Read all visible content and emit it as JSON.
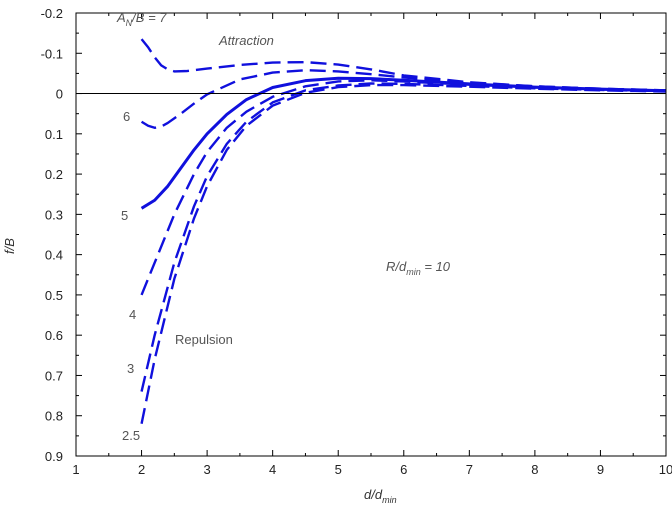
{
  "chart_data": {
    "type": "line",
    "xlabel": "d/d",
    "xlabel_sub": "min",
    "ylabel": "f/B",
    "xlim": [
      1,
      10
    ],
    "ylim": [
      -0.2,
      0.9
    ],
    "y_inverted": true,
    "x_ticks": [
      1,
      2,
      3,
      4,
      5,
      6,
      7,
      8,
      9,
      10
    ],
    "y_ticks": [
      -0.2,
      -0.1,
      0,
      0.1,
      0.2,
      0.3,
      0.4,
      0.5,
      0.6,
      0.7,
      0.8,
      0.9
    ],
    "x_tick_labels": [
      "1",
      "2",
      "3",
      "4",
      "5",
      "6",
      "7",
      "8",
      "9",
      "10"
    ],
    "y_tick_labels": [
      "-0.2",
      "-0.1",
      "0",
      "0.1",
      "0.2",
      "0.3",
      "0.4",
      "0.5",
      "0.6",
      "0.7",
      "0.8",
      "0.9"
    ],
    "grid": false,
    "zero_line": true,
    "line_color": "#1010dd",
    "annotations": {
      "attraction": "Attraction",
      "repulsion": "Repulsion",
      "param_main": "R/d",
      "param_sub": "min",
      "param_tail": " = 10",
      "an_A": "A",
      "an_N": "N",
      "an_tail": "/B = 7"
    },
    "series": [
      {
        "label": "",
        "solid": false,
        "x": [
          2.0,
          2.1,
          2.2,
          2.3,
          2.4,
          2.5,
          2.7,
          3.0,
          3.5,
          4.0,
          4.5,
          5.0,
          5.5,
          6.0,
          7.0,
          8.0,
          9.0,
          10.0
        ],
        "y": [
          -0.135,
          -0.115,
          -0.09,
          -0.07,
          -0.06,
          -0.055,
          -0.056,
          -0.062,
          -0.071,
          -0.077,
          -0.078,
          -0.072,
          -0.06,
          -0.045,
          -0.028,
          -0.018,
          -0.012,
          -0.008
        ]
      },
      {
        "label": "6",
        "solid": false,
        "x": [
          2.0,
          2.1,
          2.2,
          2.3,
          2.4,
          2.6,
          2.8,
          3.0,
          3.5,
          4.0,
          4.5,
          5.0,
          5.5,
          6.0,
          7.0,
          8.0,
          9.0,
          10.0
        ],
        "y": [
          0.07,
          0.08,
          0.085,
          0.082,
          0.073,
          0.05,
          0.025,
          0.002,
          -0.035,
          -0.052,
          -0.058,
          -0.055,
          -0.048,
          -0.04,
          -0.027,
          -0.018,
          -0.012,
          -0.008
        ]
      },
      {
        "label": "5",
        "solid": true,
        "x": [
          2.0,
          2.2,
          2.4,
          2.6,
          2.8,
          3.0,
          3.3,
          3.6,
          4.0,
          4.5,
          5.0,
          5.5,
          6.0,
          7.0,
          8.0,
          9.0,
          10.0
        ],
        "y": [
          0.285,
          0.265,
          0.23,
          0.185,
          0.14,
          0.1,
          0.052,
          0.015,
          -0.015,
          -0.032,
          -0.038,
          -0.037,
          -0.033,
          -0.024,
          -0.016,
          -0.011,
          -0.007
        ]
      },
      {
        "label": "4",
        "solid": false,
        "x": [
          2.0,
          2.2,
          2.5,
          2.8,
          3.0,
          3.3,
          3.6,
          4.0,
          4.5,
          5.0,
          5.5,
          6.0,
          7.0,
          8.0,
          9.0,
          10.0
        ],
        "y": [
          0.5,
          0.42,
          0.3,
          0.2,
          0.145,
          0.085,
          0.045,
          0.008,
          -0.018,
          -0.03,
          -0.033,
          -0.03,
          -0.022,
          -0.015,
          -0.01,
          -0.006
        ]
      },
      {
        "label": "3",
        "solid": false,
        "x": [
          2.0,
          2.2,
          2.5,
          2.8,
          3.0,
          3.3,
          3.6,
          4.0,
          4.5,
          5.0,
          5.5,
          6.0,
          7.0,
          8.0,
          9.0,
          10.0
        ],
        "y": [
          0.74,
          0.6,
          0.42,
          0.28,
          0.205,
          0.125,
          0.07,
          0.022,
          -0.008,
          -0.02,
          -0.025,
          -0.024,
          -0.019,
          -0.013,
          -0.009,
          -0.006
        ]
      },
      {
        "label": "2.5",
        "solid": false,
        "x": [
          2.0,
          2.2,
          2.5,
          2.8,
          3.0,
          3.3,
          3.6,
          4.0,
          4.5,
          5.0,
          5.5,
          6.0,
          7.0,
          8.0,
          9.0,
          10.0
        ],
        "y": [
          0.82,
          0.66,
          0.46,
          0.31,
          0.23,
          0.14,
          0.08,
          0.03,
          -0.002,
          -0.016,
          -0.021,
          -0.021,
          -0.017,
          -0.012,
          -0.008,
          -0.005
        ]
      }
    ]
  }
}
